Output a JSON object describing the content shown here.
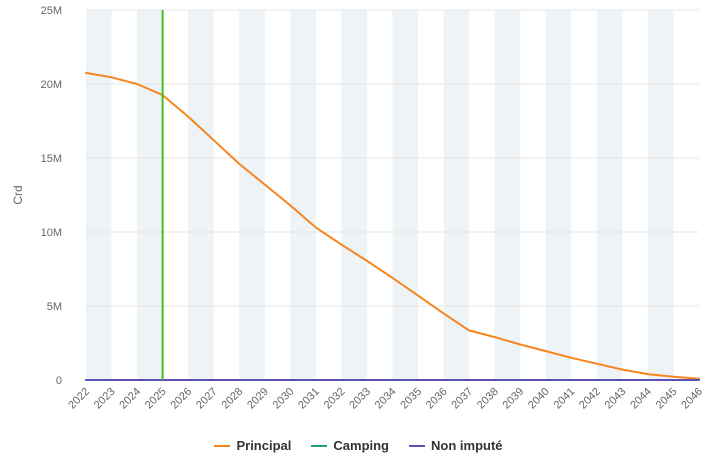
{
  "chart_data": {
    "type": "line",
    "title": "",
    "xlabel": "",
    "ylabel": "Crd",
    "categories": [
      "2022",
      "2023",
      "2024",
      "2025",
      "2026",
      "2027",
      "2028",
      "2029",
      "2030",
      "2031",
      "2032",
      "2033",
      "2034",
      "2035",
      "2036",
      "2037",
      "2038",
      "2039",
      "2040",
      "2041",
      "2042",
      "2043",
      "2044",
      "2045",
      "2046"
    ],
    "y_ticks": [
      "0",
      "5M",
      "10M",
      "15M",
      "20M",
      "25M"
    ],
    "ylim": [
      0,
      25000000
    ],
    "grid": true,
    "alternate_bands": true,
    "legend_position": "bottom",
    "series": [
      {
        "name": "Principal",
        "color": "#f7851e",
        "values": [
          20750000,
          20450000,
          20000000,
          19250000,
          17800000,
          16200000,
          14600000,
          13200000,
          11800000,
          10300000,
          9150000,
          8050000,
          6900000,
          5700000,
          4500000,
          3350000,
          2900000,
          2400000,
          1950000,
          1500000,
          1100000,
          700000,
          400000,
          220000,
          80000
        ]
      },
      {
        "name": "Camping",
        "color": "#1fa07b",
        "values": [
          0,
          0,
          0,
          0,
          0,
          0,
          0,
          0,
          0,
          0,
          0,
          0,
          0,
          0,
          0,
          0,
          0,
          0,
          0,
          0,
          0,
          0,
          0,
          0,
          0
        ]
      },
      {
        "name": "Non imputé",
        "color": "#5a4fb8",
        "values": [
          0,
          0,
          0,
          0,
          0,
          0,
          0,
          0,
          0,
          0,
          0,
          0,
          0,
          0,
          0,
          0,
          0,
          0,
          0,
          0,
          0,
          0,
          0,
          0,
          0
        ]
      }
    ],
    "marker_line": {
      "x": "2025",
      "color": "#44c21a"
    }
  }
}
